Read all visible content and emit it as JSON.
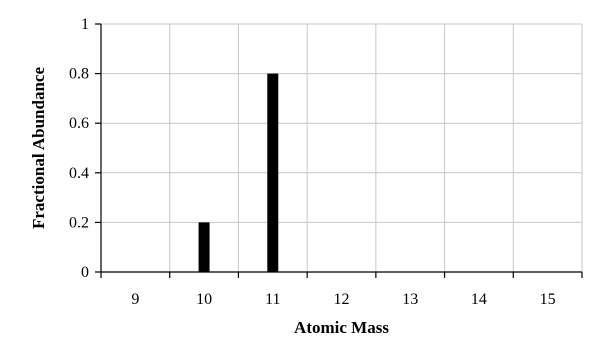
{
  "chart_data": {
    "type": "bar",
    "categories": [
      "9",
      "10",
      "11",
      "12",
      "13",
      "14",
      "15"
    ],
    "values": [
      0,
      0.2,
      0.8,
      0,
      0,
      0,
      0
    ],
    "xlabel": "Atomic Mass",
    "ylabel": "Fractional Abundance",
    "ylim": [
      0,
      1
    ],
    "yticks": [
      "0",
      "0.2",
      "0.4",
      "0.6",
      "0.8",
      "1"
    ],
    "grid": true,
    "bar_color": "#000000",
    "grid_color": "#c8c8c8"
  }
}
